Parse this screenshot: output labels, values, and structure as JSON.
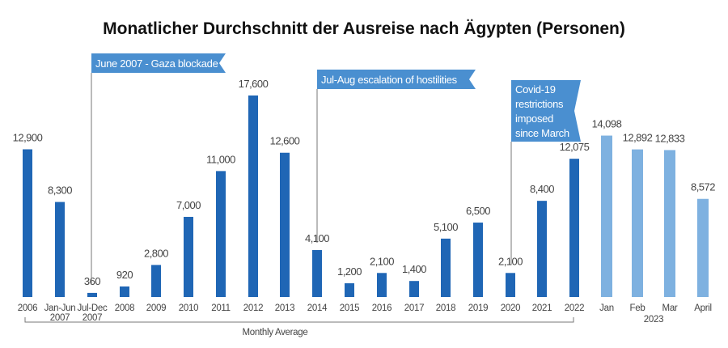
{
  "chart_data": {
    "type": "bar",
    "title": "Monatlicher Durchschnitt der Ausreise nach Ägypten (Personen)",
    "xlabel": "",
    "ylabel": "",
    "ylim": [
      0,
      17600
    ],
    "grid": false,
    "categories": [
      [
        "2006"
      ],
      [
        "Jan-Jun",
        "2007"
      ],
      [
        "Jul-Dec",
        "2007"
      ],
      [
        "2008"
      ],
      [
        "2009"
      ],
      [
        "2010"
      ],
      [
        "2011"
      ],
      [
        "2012"
      ],
      [
        "2013"
      ],
      [
        "2014"
      ],
      [
        "2015"
      ],
      [
        "2016"
      ],
      [
        "2017"
      ],
      [
        "2018"
      ],
      [
        "2019"
      ],
      [
        "2020"
      ],
      [
        "2021"
      ],
      [
        "2022"
      ],
      [
        "Jan"
      ],
      [
        "Feb"
      ],
      [
        "Mar"
      ],
      [
        "April"
      ]
    ],
    "values": [
      12900,
      8300,
      360,
      920,
      2800,
      7000,
      11000,
      17600,
      12600,
      4100,
      1200,
      2100,
      1400,
      5100,
      6500,
      2100,
      8400,
      12075,
      14098,
      12892,
      12833,
      8572
    ],
    "value_labels": [
      "12,900",
      "8,300",
      "360",
      "920",
      "2,800",
      "7,000",
      "11,000",
      "17,600",
      "12,600",
      "4,100",
      "1,200",
      "2,100",
      "1,400",
      "5,100",
      "6,500",
      "2,100",
      "8,400",
      "12,075",
      "14,098",
      "12,892",
      "12,833",
      "8,572"
    ],
    "series_groups": [
      {
        "name": "Monthly Average",
        "from": 0,
        "to": 17,
        "color": "#1f66b5"
      },
      {
        "name": "2023",
        "from": 18,
        "to": 21,
        "color": "#7eb1e0"
      }
    ],
    "group_labels": {
      "monthly_average": "Monthly Average",
      "year_2023": "2023"
    },
    "annotations": [
      {
        "lines": [
          "June 2007 - Gaza blockade"
        ],
        "at_category": 2
      },
      {
        "lines": [
          "Jul-Aug escalation of hostilities"
        ],
        "at_category": 9
      },
      {
        "lines": [
          "Covid-19",
          "restrictions",
          "imposed",
          "since March"
        ],
        "at_category": 15
      }
    ],
    "annotation_color": "#4a8fd0"
  }
}
